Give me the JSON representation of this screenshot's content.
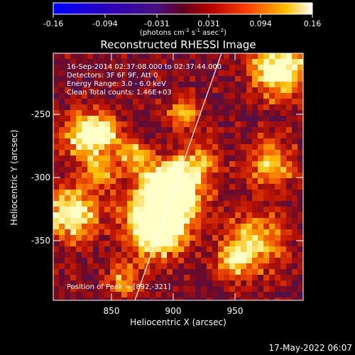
{
  "colorbar": {
    "ticks": [
      "-0.16",
      "-0.094",
      "-0.031",
      "0.031",
      "0.094",
      "0.16"
    ],
    "units_main": "(photons cm",
    "units_exp1": "-2",
    "units_mid1": " s",
    "units_exp2": "-1",
    "units_mid2": " asec",
    "units_exp3": "-2",
    "units_end": ")"
  },
  "title": "Reconstructed RHESSI Image",
  "info": {
    "line1": "16-Sep-2014 02:37:08.000 to 02:37:44.000",
    "line2": "Detectors: 3F 6F 9F, Att 0",
    "line3": "Energy Range: 3.0 - 6.0 keV",
    "line4": "Clean     Total counts: 1.46E+03",
    "peak": "Position of Peak = [892,-321]"
  },
  "axes": {
    "xlabel": "Heliocentric X (arcsec)",
    "ylabel": "Heliocentric Y (arcsec)",
    "xticks": [
      "850",
      "900",
      "950"
    ],
    "yticks": [
      "-250",
      "-300",
      "-350"
    ]
  },
  "timestamp": "17-May-2022 06:07",
  "colors": {
    "background": "#000000",
    "foreground": "#ffffff"
  }
}
